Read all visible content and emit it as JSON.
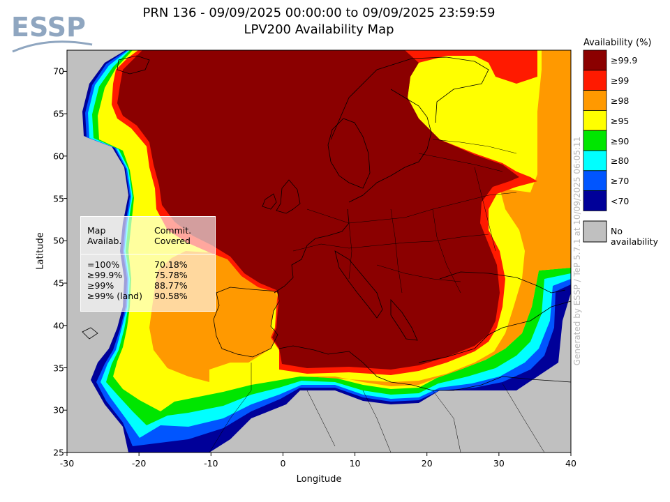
{
  "header": {
    "logo_text": "ESSP",
    "title_line1": "PRN 136 - 09/09/2025 00:00:00 to 09/09/2025 23:59:59",
    "title_line2": "LPV200 Availability Map"
  },
  "legend": {
    "title": "Availability (%)",
    "entries": [
      {
        "label": "≥99.9",
        "color": "#8b0000"
      },
      {
        "label": "≥99",
        "color": "#ff1a00"
      },
      {
        "label": "≥98",
        "color": "#ff9900"
      },
      {
        "label": "≥95",
        "color": "#ffff00"
      },
      {
        "label": "≥90",
        "color": "#00e600"
      },
      {
        "label": "≥80",
        "color": "#00ffff"
      },
      {
        "label": "≥70",
        "color": "#0055ff"
      },
      {
        "label": "<70",
        "color": "#000099"
      }
    ],
    "no_availability": {
      "label": "No availability",
      "color": "#c0c0c0"
    }
  },
  "axes": {
    "xlabel": "Longitude",
    "ylabel": "Latitude",
    "xticks": [
      "-30",
      "-20",
      "-10",
      "0",
      "10",
      "20",
      "30",
      "40"
    ],
    "yticks": [
      "70",
      "65",
      "60",
      "55",
      "50",
      "45",
      "40",
      "35",
      "30",
      "25"
    ],
    "lon_range": [
      -30,
      40
    ],
    "lat_range": [
      25,
      72.5
    ]
  },
  "stats": {
    "col1_header_l1": "Map",
    "col1_header_l2": "Availab.",
    "col2_header_l1": "Commit.",
    "col2_header_l2": "Covered",
    "rows": [
      {
        "label": "=100%",
        "value": "70.18%"
      },
      {
        "label": "≥99.9%",
        "value": "75.78%"
      },
      {
        "label": "≥99%",
        "value": "88.77%"
      },
      {
        "label": "≥99% (land)",
        "value": "90.58%"
      }
    ]
  },
  "footer_note": "Generated by ESSP / TeP 5.7.1 at 10/09/2025 06:05:11"
}
